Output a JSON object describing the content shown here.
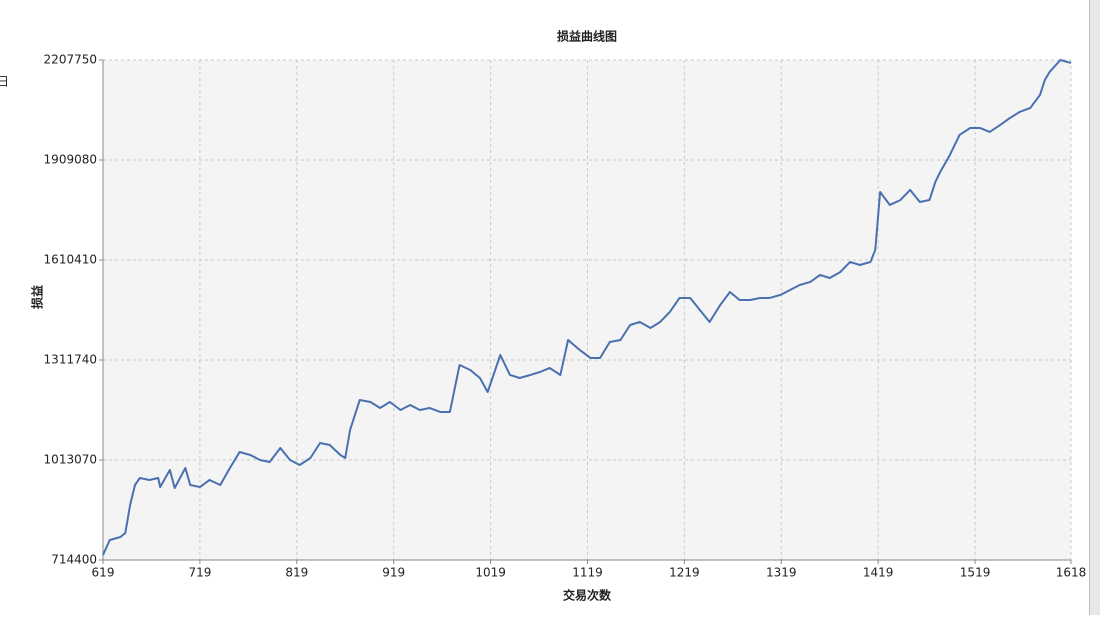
{
  "left_edge_text": "日",
  "chart_data": {
    "type": "line",
    "title": "损益曲线图",
    "x_label": "交易次数",
    "y_label": "损益",
    "x": [
      619,
      626,
      637,
      642,
      647,
      652,
      657,
      667,
      676,
      678,
      688,
      693,
      704,
      709,
      719,
      729,
      740,
      750,
      760,
      771,
      781,
      791,
      802,
      812,
      822,
      833,
      843,
      853,
      864,
      869,
      874,
      884,
      895,
      905,
      915,
      926,
      936,
      946,
      956,
      967,
      977,
      987,
      998,
      1008,
      1016,
      1029,
      1039,
      1049,
      1060,
      1070,
      1080,
      1091,
      1099,
      1111,
      1122,
      1132,
      1142,
      1153,
      1163,
      1173,
      1184,
      1194,
      1204,
      1214,
      1225,
      1235,
      1245,
      1256,
      1266,
      1276,
      1287,
      1297,
      1307,
      1318,
      1328,
      1338,
      1349,
      1359,
      1369,
      1380,
      1390,
      1400,
      1411,
      1416,
      1421,
      1431,
      1442,
      1452,
      1462,
      1472,
      1478,
      1483,
      1493,
      1503,
      1514,
      1524,
      1534,
      1545,
      1555,
      1565,
      1576,
      1586,
      1591,
      1596,
      1607,
      1618
    ],
    "series": [
      {
        "name": "损益",
        "color": "#4a70b0",
        "values": [
          729300,
          774100,
          783100,
          795000,
          878700,
          938400,
          959300,
          953400,
          959300,
          932400,
          983200,
          929500,
          989200,
          938400,
          932400,
          953400,
          938400,
          989200,
          1037000,
          1028000,
          1013100,
          1007100,
          1049000,
          1013100,
          998200,
          1019100,
          1063900,
          1057900,
          1028000,
          1019100,
          1102700,
          1192300,
          1186300,
          1168400,
          1186300,
          1162400,
          1177400,
          1162400,
          1168400,
          1156500,
          1156500,
          1296900,
          1281900,
          1258000,
          1216200,
          1326700,
          1267000,
          1258000,
          1267000,
          1275900,
          1287900,
          1267000,
          1371500,
          1341700,
          1317800,
          1317800,
          1365500,
          1371500,
          1416300,
          1425300,
          1407300,
          1425300,
          1455200,
          1497000,
          1497000,
          1461100,
          1425300,
          1476100,
          1514900,
          1491000,
          1491000,
          1497000,
          1497000,
          1506000,
          1520900,
          1535800,
          1544800,
          1565700,
          1556700,
          1574600,
          1604500,
          1595500,
          1604500,
          1640400,
          1813600,
          1774800,
          1789700,
          1819600,
          1783700,
          1789700,
          1843500,
          1873400,
          1924100,
          1983900,
          2004800,
          2004800,
          1992800,
          2013700,
          2034600,
          2052500,
          2064500,
          2103400,
          2148200,
          2172200,
          2207700,
          2198900
        ]
      }
    ],
    "xlim": [
      619,
      1618
    ],
    "xticks": [
      619,
      719,
      819,
      919,
      1019,
      1119,
      1219,
      1319,
      1419,
      1519,
      1618
    ],
    "ylim": [
      714400,
      2207750
    ],
    "yticks": [
      714400,
      1013070,
      1311740,
      1610410,
      1909080,
      2207750
    ],
    "grid": true,
    "plot_background": "#f4f4f4"
  }
}
